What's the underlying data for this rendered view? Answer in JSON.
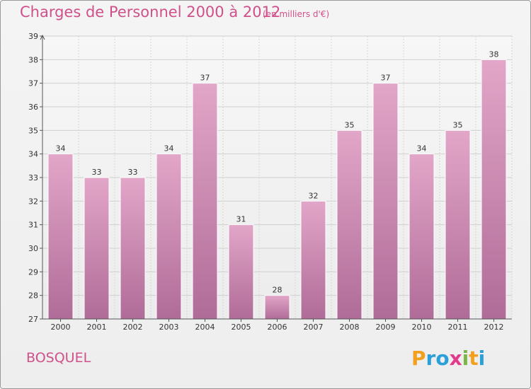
{
  "title": "Charges de Personnel 2000 à 2012",
  "subtitle": "(en milliers d'€)",
  "commune": "BOSQUEL",
  "brand": {
    "letters": [
      "P",
      "r",
      "o",
      "x",
      "i",
      "t",
      "i"
    ],
    "colors": [
      "#f2a01e",
      "#2b9fd8",
      "#2b9fd8",
      "#e43a8c",
      "#7ab648",
      "#f2a01e",
      "#2b9fd8"
    ]
  },
  "colors": {
    "bar_top": "#e2a6c8",
    "bar_bottom": "#b06c98",
    "accent": "#d0508a"
  },
  "chart_data": {
    "type": "bar",
    "title": "Charges de Personnel 2000 à 2012",
    "subtitle": "(en milliers d'€)",
    "categories": [
      "2000",
      "2001",
      "2002",
      "2003",
      "2004",
      "2005",
      "2006",
      "2007",
      "2008",
      "2009",
      "2010",
      "2011",
      "2012"
    ],
    "values": [
      34,
      33,
      33,
      34,
      37,
      31,
      28,
      32,
      35,
      37,
      34,
      35,
      38
    ],
    "ylim": [
      27,
      39
    ],
    "yticks": [
      27,
      28,
      29,
      30,
      31,
      32,
      33,
      34,
      35,
      36,
      37,
      38,
      39
    ],
    "grid": true,
    "data_labels": true
  }
}
